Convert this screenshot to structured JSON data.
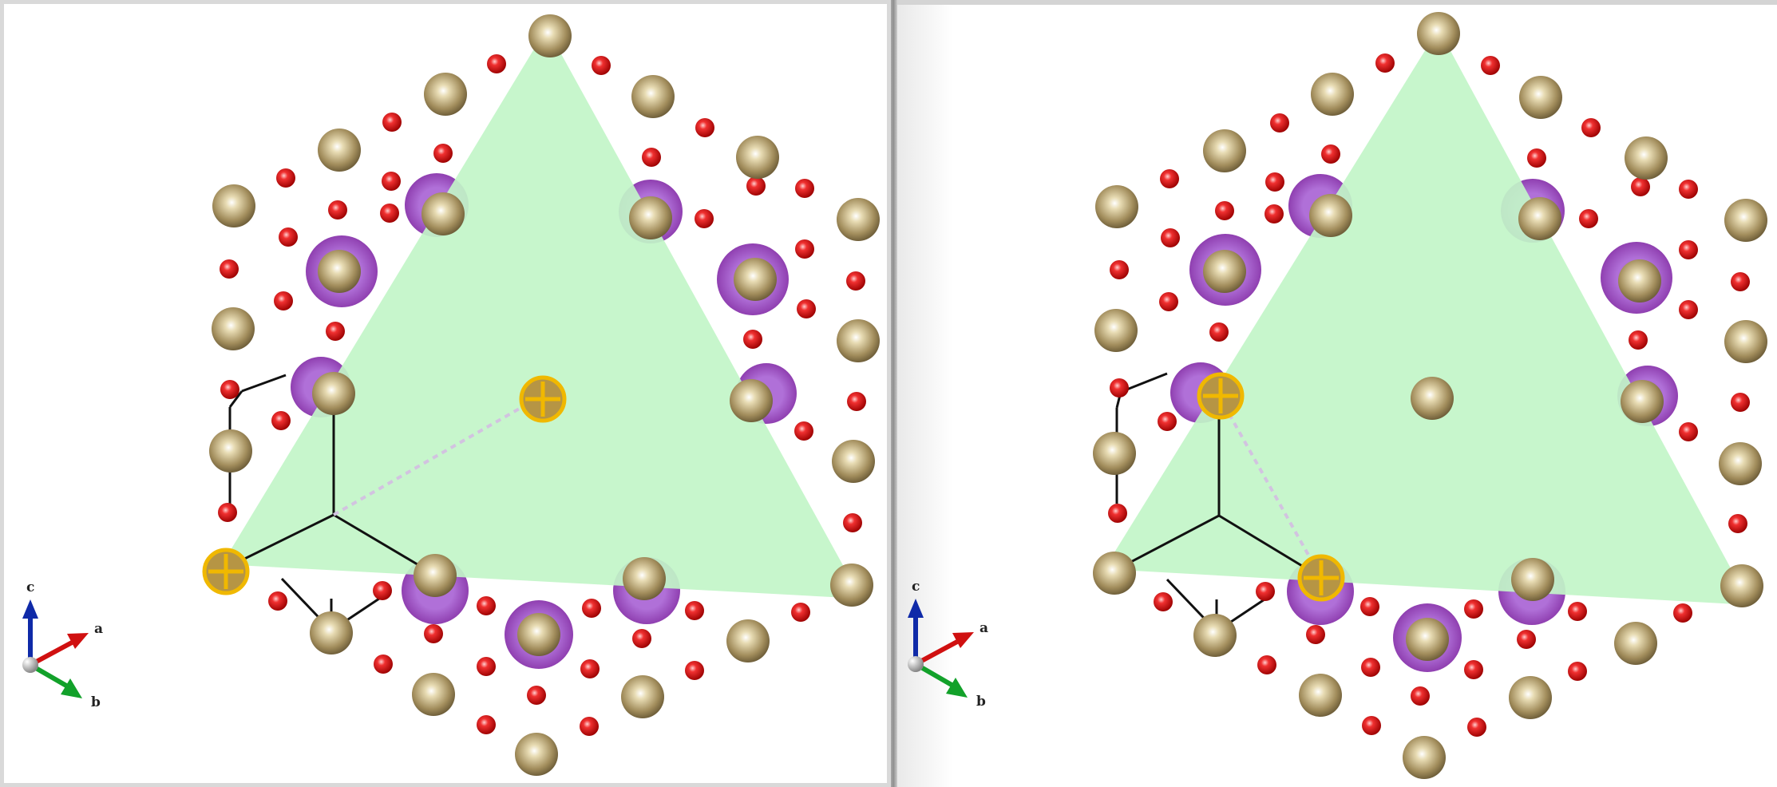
{
  "views": [
    {
      "name": "view-left",
      "axis_labels": {
        "c": "c",
        "a": "a",
        "b": "b"
      }
    },
    {
      "name": "view-right",
      "axis_labels": {
        "c": "c",
        "a": "a",
        "b": "b"
      }
    }
  ],
  "colors": {
    "plane_fill": "#c2f5c8",
    "metal_atom": "#a28d5c",
    "oxygen_atom": "#e01010",
    "site_ring": "#8f3fb0",
    "selection": "#f0b800",
    "axis_c": "#0f2aa8",
    "axis_a": "#d01010",
    "axis_b": "#12a12a"
  }
}
